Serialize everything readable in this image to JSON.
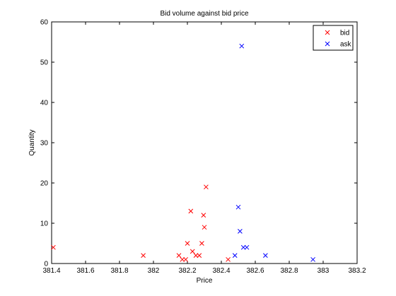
{
  "chart_data": {
    "type": "scatter",
    "title": "Bid volume against bid price",
    "xlabel": "Price",
    "ylabel": "Quantity",
    "xlim": [
      381.4,
      383.2
    ],
    "ylim": [
      0,
      60
    ],
    "xticks": [
      "381.4",
      "381.6",
      "381.8",
      "382",
      "382.2",
      "382.4",
      "382.6",
      "382.8",
      "383",
      "383.2"
    ],
    "yticks": [
      "0",
      "10",
      "20",
      "30",
      "40",
      "50",
      "60"
    ],
    "grid": false,
    "legend_position": "top-right",
    "marker": "x",
    "series": [
      {
        "name": "bid",
        "color": "#ff0000",
        "points": [
          [
            381.41,
            4
          ],
          [
            381.94,
            2
          ],
          [
            382.15,
            2
          ],
          [
            382.17,
            1
          ],
          [
            382.19,
            1
          ],
          [
            382.2,
            5
          ],
          [
            382.22,
            13
          ],
          [
            382.23,
            3
          ],
          [
            382.25,
            2
          ],
          [
            382.27,
            2
          ],
          [
            382.285,
            5
          ],
          [
            382.295,
            12
          ],
          [
            382.3,
            9
          ],
          [
            382.31,
            19
          ],
          [
            382.44,
            1
          ]
        ]
      },
      {
        "name": "ask",
        "color": "#0000ff",
        "points": [
          [
            382.48,
            2
          ],
          [
            382.5,
            14
          ],
          [
            382.51,
            8
          ],
          [
            382.52,
            54
          ],
          [
            382.53,
            4
          ],
          [
            382.55,
            4
          ],
          [
            382.66,
            2
          ],
          [
            382.94,
            1
          ]
        ]
      }
    ]
  }
}
